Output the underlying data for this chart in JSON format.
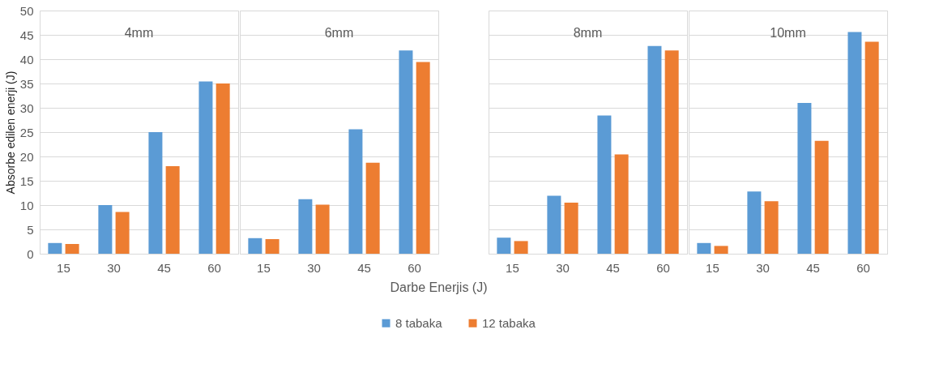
{
  "chart_data": [
    {
      "type": "bar",
      "title": "4mm",
      "ylabel": "Absorbe edilen enerji (J)",
      "categories": [
        "15",
        "30",
        "45",
        "60"
      ],
      "series": [
        {
          "name": "8 tabaka",
          "color": "#5b9bd5",
          "values": [
            2.2,
            10,
            25,
            35.4
          ]
        },
        {
          "name": "12 tabaka",
          "color": "#ed7d31",
          "values": [
            2.0,
            8.6,
            18,
            35
          ]
        }
      ],
      "ylim": [
        0,
        50
      ],
      "yticks": [
        0,
        5,
        10,
        15,
        20,
        25,
        30,
        35,
        40,
        45,
        50
      ],
      "grid": "y",
      "legend": "bottom"
    },
    {
      "type": "bar",
      "title": "6mm",
      "xlabel": "Darbe Enerjis (J)",
      "categories": [
        "15",
        "30",
        "45",
        "60"
      ],
      "series": [
        {
          "name": "8 tabaka",
          "color": "#5b9bd5",
          "values": [
            3.2,
            11.2,
            25.6,
            41.8
          ]
        },
        {
          "name": "12 tabaka",
          "color": "#ed7d31",
          "values": [
            3.0,
            10.1,
            18.7,
            39.4
          ]
        }
      ],
      "ylim": [
        0,
        50
      ],
      "yticks": [
        0,
        5,
        10,
        15,
        20,
        25,
        30,
        35,
        40,
        45,
        50
      ],
      "grid": "y",
      "tick_labels": "x",
      "legend": "bottom"
    },
    {
      "type": "bar",
      "title": "8mm",
      "categories": [
        "15",
        "30",
        "45",
        "60"
      ],
      "series": [
        {
          "name": "8 tabaka",
          "color": "#5b9bd5",
          "values": [
            3.3,
            11.9,
            28.4,
            42.7
          ]
        },
        {
          "name": "12 tabaka",
          "color": "#ed7d31",
          "values": [
            2.6,
            10.5,
            20.4,
            41.8
          ]
        }
      ],
      "ylim": [
        0,
        50
      ],
      "yticks": [
        0,
        5,
        10,
        15,
        20,
        25,
        30,
        35,
        40,
        45,
        50
      ],
      "grid": "y",
      "tick_labels": "x",
      "legend": "bottom"
    },
    {
      "type": "bar",
      "title": "10mm",
      "categories": [
        "15",
        "30",
        "45",
        "60"
      ],
      "series": [
        {
          "name": "8 tabaka",
          "color": "#5b9bd5",
          "values": [
            2.2,
            12.8,
            31,
            45.6
          ]
        },
        {
          "name": "12 tabaka",
          "color": "#ed7d31",
          "values": [
            1.6,
            10.8,
            23.2,
            43.6
          ]
        }
      ],
      "ylim": [
        0,
        50
      ],
      "yticks": [
        0,
        5,
        10,
        15,
        20,
        25,
        30,
        35,
        40,
        45,
        50
      ],
      "grid": "y",
      "tick_labels": "x",
      "legend": "bottom"
    }
  ]
}
